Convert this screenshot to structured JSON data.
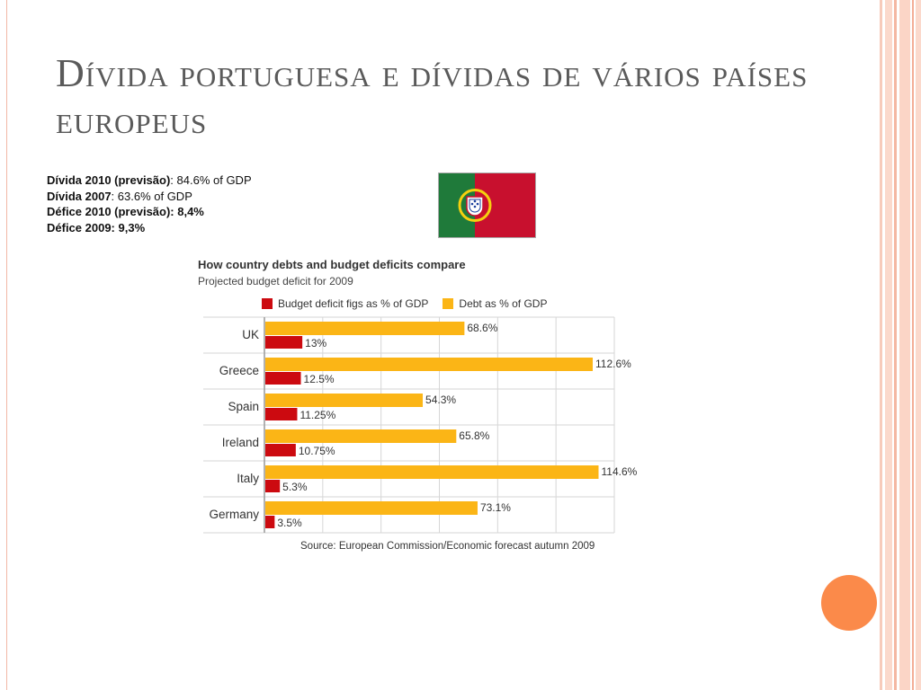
{
  "slide": {
    "title": "Dívida portuguesa e dívidas de vários países europeus",
    "facts": [
      {
        "label": "Dívida 2010 (previsão)",
        "value": ": 84.6% of GDP"
      },
      {
        "label": "Dívida 2007",
        "value": ": 63.6% of GDP"
      },
      {
        "label": "Défice 2010 (previsão): 8,4%",
        "value": ""
      },
      {
        "label": "Défice 2009: 9,3%",
        "value": ""
      }
    ],
    "flag": {
      "name": "portugal-flag",
      "green": "#1f7a3a",
      "red": "#c8102e",
      "yellow": "#f5d00f"
    },
    "accent_colors": {
      "dot": "#fb8a4a",
      "title": "#5a5a5a"
    }
  },
  "chart_data": {
    "type": "bar",
    "title": "How country debts and budget deficits compare",
    "subtitle": "Projected budget deficit for 2009",
    "categories": [
      "UK",
      "Greece",
      "Spain",
      "Ireland",
      "Italy",
      "Germany"
    ],
    "series": [
      {
        "name": "Debt as % of GDP",
        "color": "#fbb516",
        "values": [
          68.6,
          112.6,
          54.3,
          65.8,
          114.6,
          73.1
        ],
        "labels": [
          "68.6%",
          "112.6%",
          "54.3%",
          "65.8%",
          "114.6%",
          "73.1%"
        ]
      },
      {
        "name": "Budget deficit figs as % of GDP",
        "color": "#cc0a10",
        "values": [
          13,
          12.5,
          11.25,
          10.75,
          5.3,
          3.5
        ],
        "labels": [
          "13%",
          "12.5%",
          "11.25%",
          "10.75%",
          "5.3%",
          "3.5%"
        ]
      }
    ],
    "legend": [
      "Budget deficit figs as % of GDP",
      "Debt as % of GDP"
    ],
    "xlim": [
      0,
      120
    ],
    "grid": true,
    "orientation": "horizontal",
    "source": "Source: European Commission/Economic forecast autumn 2009"
  }
}
